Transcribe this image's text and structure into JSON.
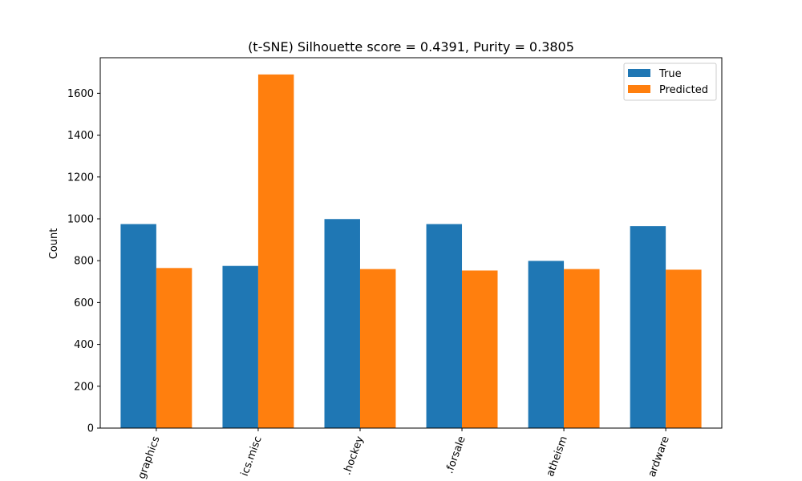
{
  "chart_data": {
    "type": "bar",
    "title": "(t-SNE) Silhouette score = 0.4391, Purity = 0.3805",
    "xlabel": "",
    "ylabel": "Count",
    "ylim": [
      0,
      1770
    ],
    "yticks": [
      0,
      200,
      400,
      600,
      800,
      1000,
      1200,
      1400,
      1600
    ],
    "categories": [
      "comp.graphics",
      "talk.politics.misc",
      "rec.sport.hockey",
      "misc.forsale",
      "alt.atheism",
      "comp.sys.ibm.pc.hardware"
    ],
    "tick_labels_visible": [
      "graphics",
      "ics.misc",
      ".hockey",
      ".forsale",
      "atheism",
      "ardware"
    ],
    "series": [
      {
        "name": "True",
        "color": "#1f77b4",
        "values": [
          975,
          775,
          999,
          975,
          799,
          965
        ]
      },
      {
        "name": "Predicted",
        "color": "#ff7f0e",
        "values": [
          765,
          1690,
          760,
          753,
          760,
          757
        ]
      }
    ],
    "legend_position": "top-right",
    "grid": false,
    "xtick_rotation": -70
  }
}
